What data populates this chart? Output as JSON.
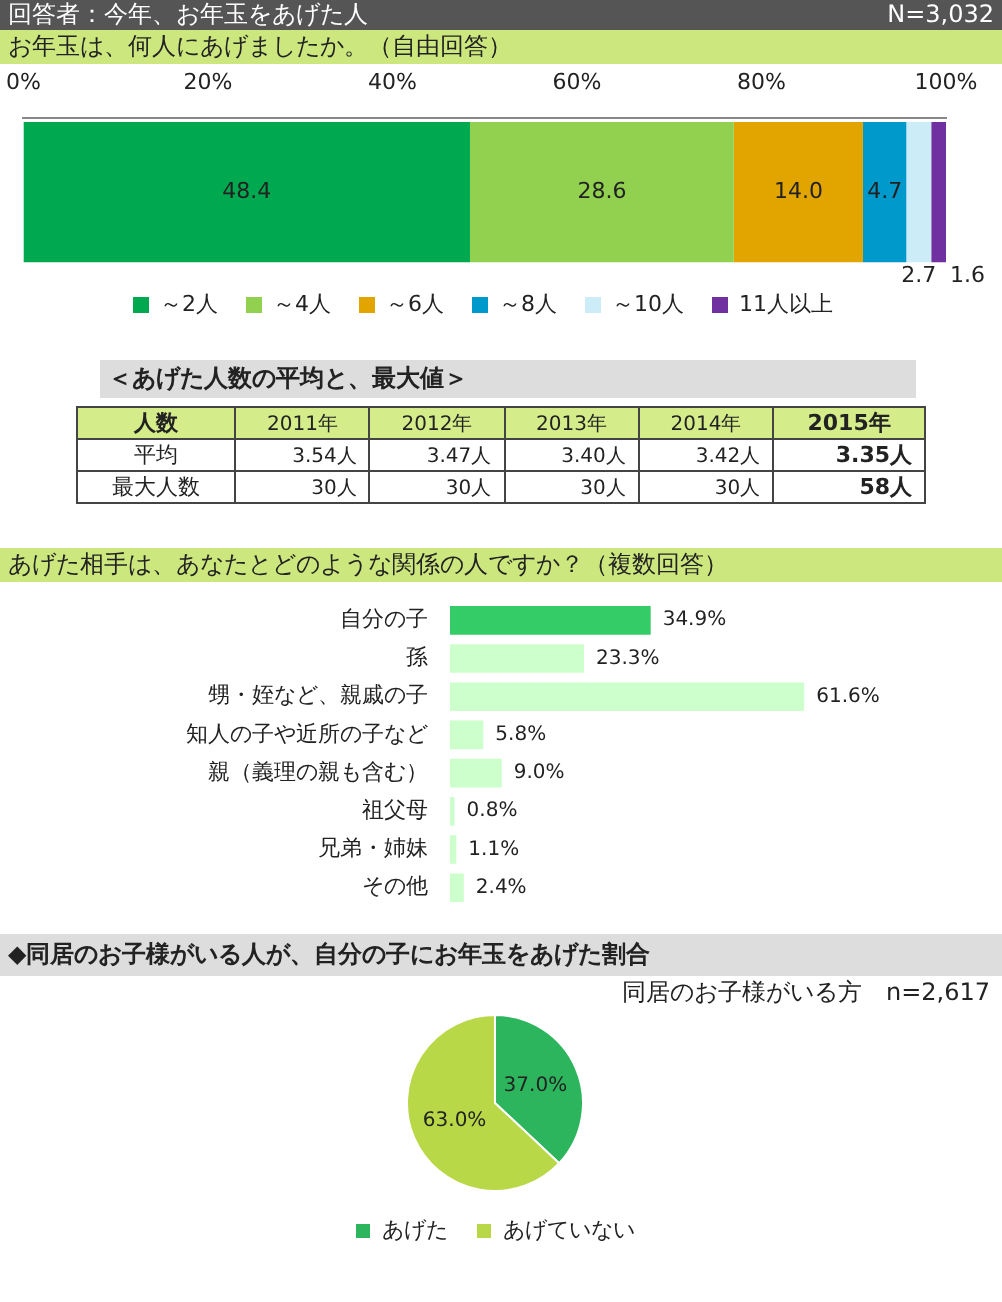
{
  "chart_data": [
    {
      "type": "bar",
      "orientation": "horizontal",
      "stacked": true,
      "subtitle": "回答者：今年、お年玉をあげた人",
      "annotations": [
        "N=3,032"
      ],
      "title": "お年玉は、何人にあげましたか。（自由回答）",
      "categories": [
        null
      ],
      "xlim": [
        0,
        100
      ],
      "xticks": [
        {
          "value": 0,
          "label": "0%"
        },
        {
          "value": 20,
          "label": "20%"
        },
        {
          "value": 40,
          "label": "40%"
        },
        {
          "value": 60,
          "label": "60%"
        },
        {
          "value": 80,
          "label": "80%"
        },
        {
          "value": 100,
          "label": "100%"
        }
      ],
      "legend": "bottom",
      "series": [
        {
          "name": "～2人",
          "color": "#00a84f",
          "values": [
            48.4
          ],
          "value_labels": [
            "48.4"
          ]
        },
        {
          "name": "～4人",
          "color": "#92d050",
          "values": [
            28.6
          ],
          "value_labels": [
            "28.6"
          ]
        },
        {
          "name": "～6人",
          "color": "#e2a500",
          "values": [
            14.0
          ],
          "value_labels": [
            "14.0"
          ]
        },
        {
          "name": "～8人",
          "color": "#0099cc",
          "values": [
            4.7
          ],
          "value_labels": [
            "4.7"
          ]
        },
        {
          "name": "～10人",
          "color": "#ccecf8",
          "values": [
            2.7
          ],
          "value_labels": [
            "2.7"
          ]
        },
        {
          "name": "11人以上",
          "color": "#7030a0",
          "values": [
            1.6
          ],
          "value_labels": [
            "1.6"
          ]
        }
      ]
    },
    {
      "type": "heatmap",
      "title": "＜あげた人数の平均と、最大値＞",
      "ylabel": "人数",
      "categories": [
        "2011年",
        "2012年",
        "2013年",
        "2014年",
        "2015年"
      ],
      "y_categories": [
        "平均",
        "最大人数"
      ],
      "cells": [
        [
          3.54,
          3.47,
          3.4,
          3.42,
          3.35
        ],
        [
          30,
          30,
          30,
          30,
          58
        ]
      ],
      "cell_labels": [
        [
          "3.54人",
          "3.47人",
          "3.40人",
          "3.42人",
          "3.35人"
        ],
        [
          "30人",
          "30人",
          "30人",
          "30人",
          "58人"
        ]
      ]
    },
    {
      "type": "bar",
      "orientation": "horizontal",
      "title": "あげた相手は、あなたとどのような関係の人ですか？（複数回答）",
      "categories": [
        "自分の子",
        "孫",
        "甥・姪など、親戚の子",
        "知人の子や近所の子など",
        "親（義理の親も含む）",
        "祖父母",
        "兄弟・姉妹",
        "その他"
      ],
      "values": [
        34.9,
        23.3,
        61.6,
        5.8,
        9.0,
        0.8,
        1.1,
        2.4
      ],
      "colors": [
        "#33cc66",
        "#ccffcc",
        "#ccffcc",
        "#ccffcc",
        "#ccffcc",
        "#ccffcc",
        "#ccffcc",
        "#ccffcc"
      ],
      "value_labels": [
        "34.9%",
        "23.3%",
        "61.6%",
        "5.8%",
        "9.0%",
        "0.8%",
        "1.1%",
        "2.4%"
      ]
    },
    {
      "type": "pie",
      "title": "◆同居のお子様がいる人が、自分の子にお年玉をあげた割合",
      "subtitle": "同居のお子様がいる方　n=2,617",
      "categories": [
        "あげた",
        "あげていない"
      ],
      "values": [
        37.0,
        63.0
      ],
      "colors": [
        "#2db55d",
        "#b8d848"
      ],
      "value_labels": [
        "37.0%",
        "63.0%"
      ],
      "legend": "bottom"
    }
  ]
}
